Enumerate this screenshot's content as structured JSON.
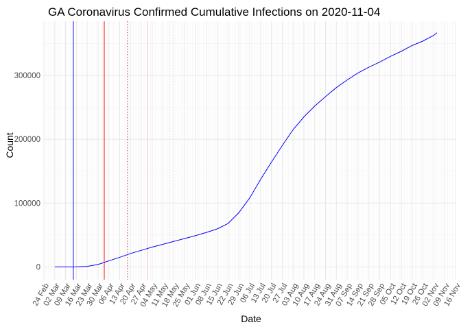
{
  "chart_data": {
    "type": "line",
    "title": "GA Coronavirus Confirmed Cumulative Infections on 2020-11-04",
    "xlabel": "Date",
    "ylabel": "Count",
    "x_range": [
      "2020-02-24",
      "2020-11-16"
    ],
    "ylim": [
      -20000,
      385000
    ],
    "y_ticks": [
      0,
      100000,
      200000,
      300000
    ],
    "y_tick_labels": [
      "0",
      "100000",
      "200000",
      "300000"
    ],
    "x_ticks": [
      "2020-02-24",
      "2020-03-02",
      "2020-03-09",
      "2020-03-16",
      "2020-03-23",
      "2020-03-30",
      "2020-04-06",
      "2020-04-13",
      "2020-04-20",
      "2020-04-27",
      "2020-05-04",
      "2020-05-11",
      "2020-05-18",
      "2020-05-25",
      "2020-06-01",
      "2020-06-08",
      "2020-06-15",
      "2020-06-22",
      "2020-06-29",
      "2020-07-06",
      "2020-07-13",
      "2020-07-20",
      "2020-07-27",
      "2020-08-03",
      "2020-08-10",
      "2020-08-17",
      "2020-08-24",
      "2020-08-31",
      "2020-09-07",
      "2020-09-14",
      "2020-09-21",
      "2020-09-28",
      "2020-10-05",
      "2020-10-12",
      "2020-10-19",
      "2020-10-26",
      "2020-11-02",
      "2020-11-09",
      "2020-11-16"
    ],
    "x_tick_labels": [
      "24 Feb",
      "02 Mar",
      "09 Mar",
      "16 Mar",
      "23 Mar",
      "30 Mar",
      "06 Apr",
      "13 Apr",
      "20 Apr",
      "27 Apr",
      "04 May",
      "11 May",
      "18 May",
      "25 May",
      "01 Jun",
      "08 Jun",
      "15 Jun",
      "22 Jun",
      "29 Jun",
      "06 Jul",
      "13 Jul",
      "20 Jul",
      "27 Jul",
      "03 Aug",
      "10 Aug",
      "17 Aug",
      "24 Aug",
      "31 Aug",
      "07 Sep",
      "14 Sep",
      "21 Sep",
      "28 Sep",
      "05 Oct",
      "12 Oct",
      "19 Oct",
      "26 Oct",
      "02 Nov",
      "09 Nov",
      "16 Nov"
    ],
    "grid": true,
    "legend": "none",
    "series": [
      {
        "color": "#0000ff",
        "x": [
          "2020-03-02",
          "2020-03-09",
          "2020-03-16",
          "2020-03-23",
          "2020-03-30",
          "2020-04-06",
          "2020-04-13",
          "2020-04-20",
          "2020-04-27",
          "2020-05-04",
          "2020-05-11",
          "2020-05-18",
          "2020-05-25",
          "2020-06-01",
          "2020-06-08",
          "2020-06-15",
          "2020-06-22",
          "2020-06-29",
          "2020-07-06",
          "2020-07-13",
          "2020-07-20",
          "2020-07-27",
          "2020-08-03",
          "2020-08-10",
          "2020-08-17",
          "2020-08-24",
          "2020-08-31",
          "2020-09-07",
          "2020-09-14",
          "2020-09-21",
          "2020-09-28",
          "2020-10-05",
          "2020-10-12",
          "2020-10-19",
          "2020-10-26",
          "2020-11-02",
          "2020-11-04"
        ],
        "values": [
          0,
          0,
          100,
          800,
          3800,
          9500,
          15000,
          21000,
          26000,
          31000,
          35500,
          40000,
          44500,
          49000,
          54000,
          59500,
          68000,
          85000,
          108000,
          137000,
          164000,
          190000,
          215000,
          235000,
          252000,
          267000,
          281000,
          293000,
          304000,
          313000,
          321000,
          330000,
          338000,
          347000,
          354000,
          363000,
          367000
        ]
      }
    ],
    "reference_lines": [
      {
        "x": "2020-03-14",
        "color": "#0000ff",
        "style": "solid"
      },
      {
        "x": "2020-04-03",
        "color": "#ff0000",
        "style": "solid"
      },
      {
        "x": "2020-04-18",
        "color": "#cc3333",
        "style": "dotted"
      },
      {
        "x": "2020-05-01",
        "color": "#ffb6c1",
        "style": "solid"
      },
      {
        "x": "2020-05-15",
        "color": "#ffb6c1",
        "style": "dotted"
      }
    ]
  }
}
